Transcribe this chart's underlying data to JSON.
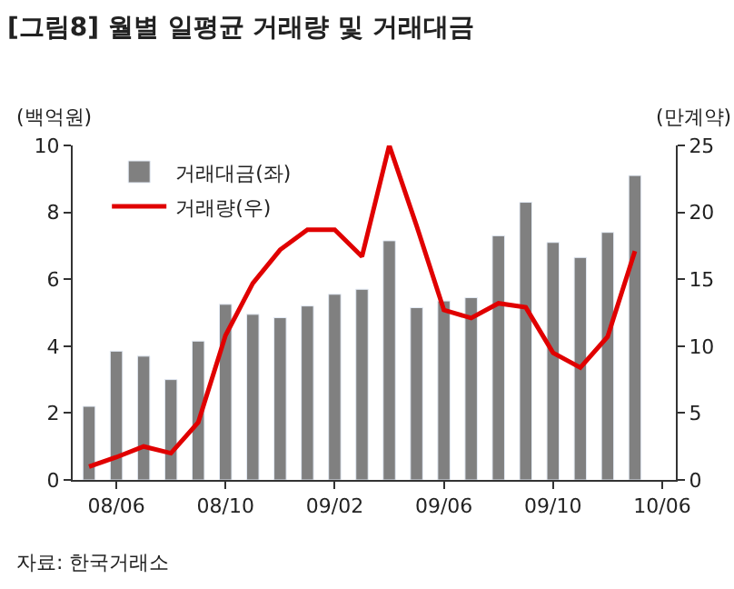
{
  "chart_data": {
    "type": "bar",
    "title": "[그림8] 월별 일평균 거래량 및 거래대금",
    "ylabel": "(백억원)",
    "y2label": "(만계약)",
    "categories": [
      null,
      "08/06",
      null,
      null,
      null,
      "08/10",
      null,
      null,
      null,
      "09/02",
      null,
      null,
      null,
      "09/06",
      null,
      null,
      null,
      "09/10",
      null,
      null,
      null,
      "10/06"
    ],
    "ylim": [
      0,
      10
    ],
    "yticks": [
      0,
      2,
      4,
      6,
      8,
      10
    ],
    "y2lim": [
      0,
      25
    ],
    "y2ticks": [
      0,
      5,
      10,
      15,
      20,
      25
    ],
    "series": [
      {
        "name": "거래대금(좌)",
        "color": "#808080",
        "values": [
          2.2,
          3.85,
          3.7,
          3.0,
          4.15,
          5.25,
          4.95,
          4.85,
          5.2,
          5.55,
          5.7,
          7.15,
          5.15,
          5.35,
          5.45,
          7.3,
          8.3,
          7.1,
          6.65,
          7.4,
          9.1,
          null
        ]
      },
      {
        "name": "거래량(우)",
        "type": "line",
        "axis": "y2",
        "color": "#e00000",
        "values": [
          1.0,
          1.7,
          2.5,
          2.0,
          4.3,
          10.8,
          14.7,
          17.2,
          18.7,
          18.7,
          16.7,
          25.0,
          19.0,
          12.7,
          12.1,
          13.2,
          12.9,
          9.5,
          8.4,
          10.7,
          17.1,
          null
        ]
      }
    ],
    "legend": "top left",
    "marker": "none",
    "annotations": [
      "자료: 한국거래소"
    ]
  }
}
